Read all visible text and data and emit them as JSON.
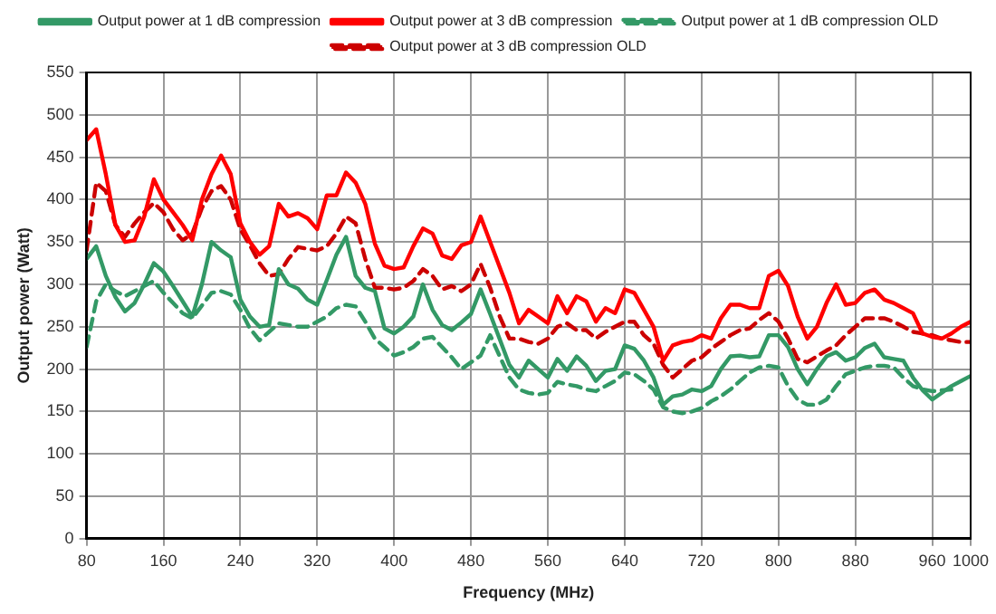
{
  "chart_data": {
    "type": "line",
    "xlabel": "Frequency (MHz)",
    "ylabel": "Output power (Watt)",
    "x": [
      80,
      90,
      100,
      110,
      120,
      130,
      140,
      150,
      160,
      170,
      180,
      190,
      200,
      210,
      220,
      230,
      240,
      250,
      260,
      270,
      280,
      290,
      300,
      310,
      320,
      330,
      340,
      350,
      360,
      370,
      380,
      390,
      400,
      410,
      420,
      430,
      440,
      450,
      460,
      470,
      480,
      490,
      500,
      510,
      520,
      530,
      540,
      550,
      560,
      570,
      580,
      590,
      600,
      610,
      620,
      630,
      640,
      650,
      660,
      670,
      680,
      690,
      700,
      710,
      720,
      730,
      740,
      750,
      760,
      770,
      780,
      790,
      800,
      810,
      820,
      830,
      840,
      850,
      860,
      870,
      880,
      890,
      900,
      910,
      920,
      930,
      940,
      950,
      960,
      970,
      980,
      990,
      1000
    ],
    "xlim": [
      80,
      1000
    ],
    "xticks": [
      80,
      160,
      240,
      320,
      400,
      480,
      560,
      640,
      720,
      800,
      880,
      960,
      1000
    ],
    "ylim": [
      0,
      550
    ],
    "yticks": [
      0,
      50,
      100,
      150,
      200,
      250,
      300,
      350,
      400,
      450,
      500,
      550
    ],
    "grid": true,
    "legend": "top",
    "marker": "none",
    "series": [
      {
        "name": "Output power at 1 dB compression",
        "color": "#339966",
        "line_style": "solid",
        "values": [
          330,
          345,
          310,
          285,
          268,
          278,
          300,
          325,
          315,
          298,
          280,
          262,
          300,
          350,
          340,
          332,
          282,
          262,
          250,
          252,
          318,
          300,
          295,
          282,
          276,
          305,
          335,
          356,
          310,
          296,
          292,
          248,
          242,
          250,
          262,
          300,
          270,
          252,
          246,
          255,
          265,
          294,
          265,
          235,
          205,
          190,
          210,
          200,
          190,
          212,
          198,
          215,
          204,
          186,
          198,
          200,
          228,
          224,
          210,
          190,
          158,
          168,
          170,
          176,
          174,
          180,
          200,
          215,
          216,
          214,
          215,
          240,
          240,
          226,
          200,
          182,
          200,
          215,
          220,
          210,
          214,
          225,
          230,
          214,
          212,
          210,
          190,
          175,
          164,
          172,
          180,
          186,
          192
        ]
      },
      {
        "name": "Output power at 3 dB compression",
        "color": "#ff0000",
        "line_style": "solid",
        "values": [
          470,
          483,
          430,
          370,
          350,
          352,
          380,
          424,
          400,
          385,
          370,
          352,
          400,
          430,
          452,
          430,
          372,
          350,
          335,
          345,
          395,
          380,
          384,
          378,
          365,
          405,
          405,
          432,
          420,
          395,
          348,
          322,
          318,
          320,
          345,
          366,
          360,
          334,
          330,
          346,
          350,
          380,
          350,
          320,
          290,
          254,
          270,
          262,
          254,
          286,
          266,
          286,
          280,
          256,
          272,
          266,
          294,
          290,
          270,
          250,
          210,
          228,
          232,
          234,
          240,
          236,
          260,
          276,
          276,
          272,
          272,
          310,
          316,
          298,
          262,
          236,
          250,
          278,
          300,
          276,
          278,
          290,
          294,
          282,
          278,
          272,
          266,
          242,
          238,
          236,
          242,
          250,
          256
        ]
      },
      {
        "name": "Output power at 1 dB compression OLD",
        "color": "#339966",
        "line_style": "dashed",
        "values": [
          226,
          280,
          300,
          292,
          286,
          292,
          298,
          304,
          290,
          278,
          266,
          260,
          275,
          290,
          292,
          288,
          270,
          248,
          234,
          244,
          254,
          252,
          250,
          250,
          256,
          262,
          272,
          276,
          274,
          256,
          236,
          226,
          216,
          220,
          226,
          236,
          238,
          226,
          214,
          200,
          208,
          216,
          240,
          215,
          190,
          176,
          172,
          170,
          172,
          185,
          182,
          180,
          176,
          174,
          180,
          186,
          196,
          194,
          186,
          176,
          155,
          150,
          148,
          150,
          154,
          162,
          168,
          176,
          186,
          196,
          202,
          204,
          202,
          180,
          164,
          158,
          158,
          164,
          180,
          194,
          198,
          202,
          204,
          204,
          202,
          190,
          180,
          176,
          174,
          175,
          176,
          null,
          null
        ]
      },
      {
        "name": "Output power at 3 dB compression OLD",
        "color": "#cc0000",
        "line_style": "dashed",
        "values": [
          340,
          420,
          410,
          370,
          356,
          372,
          385,
          396,
          385,
          365,
          352,
          360,
          390,
          410,
          416,
          400,
          365,
          346,
          325,
          310,
          312,
          330,
          344,
          342,
          340,
          345,
          360,
          380,
          372,
          330,
          296,
          296,
          294,
          296,
          304,
          318,
          310,
          294,
          298,
          292,
          300,
          324,
          296,
          262,
          236,
          236,
          232,
          230,
          236,
          250,
          254,
          246,
          246,
          236,
          244,
          250,
          256,
          256,
          240,
          230,
          205,
          190,
          200,
          210,
          214,
          224,
          232,
          240,
          246,
          248,
          258,
          266,
          256,
          236,
          212,
          208,
          215,
          222,
          228,
          240,
          250,
          260,
          260,
          260,
          256,
          250,
          244,
          242,
          240,
          236,
          234,
          232,
          232
        ]
      }
    ]
  }
}
